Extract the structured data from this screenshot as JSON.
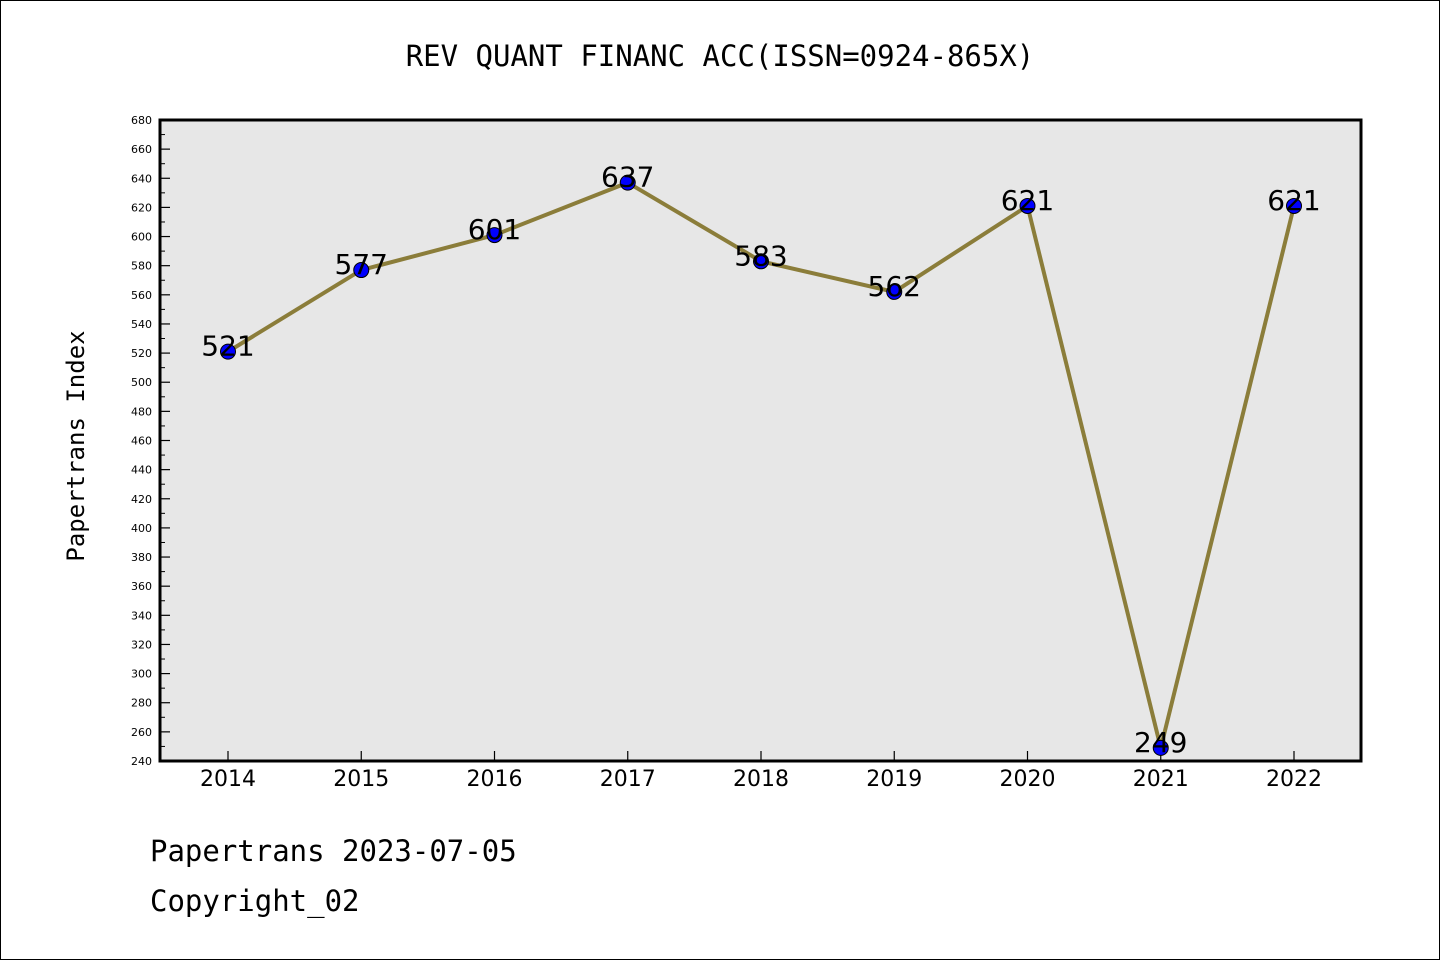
{
  "chart_data": {
    "type": "line",
    "title": "REV QUANT FINANC ACC(ISSN=0924-865X)",
    "xlabel": "",
    "ylabel": "Papertrans Index",
    "categories": [
      "2014",
      "2015",
      "2016",
      "2017",
      "2018",
      "2019",
      "2020",
      "2021",
      "2022"
    ],
    "series": [
      {
        "values": [
          521,
          577,
          601,
          637,
          583,
          562,
          621,
          249,
          621
        ]
      }
    ],
    "ylim": [
      240,
      680
    ],
    "ytick_step": 20,
    "yticks": [
      "240",
      "260",
      "280",
      "300",
      "320",
      "340",
      "360",
      "380",
      "400",
      "420",
      "440",
      "460",
      "480",
      "500",
      "520",
      "540",
      "560",
      "580",
      "600",
      "620",
      "640",
      "660",
      "680"
    ],
    "data_labels": [
      "521",
      "577",
      "601",
      "637",
      "583",
      "562",
      "621",
      "249",
      "621"
    ],
    "grid": false,
    "legend": "none",
    "colors": {
      "line": "#8b7d3a",
      "marker": "#0000ff",
      "plot_background": "#e7e7e7"
    }
  },
  "footer": {
    "line1": "Papertrans 2023-07-05",
    "line2": "Copyright_02"
  }
}
